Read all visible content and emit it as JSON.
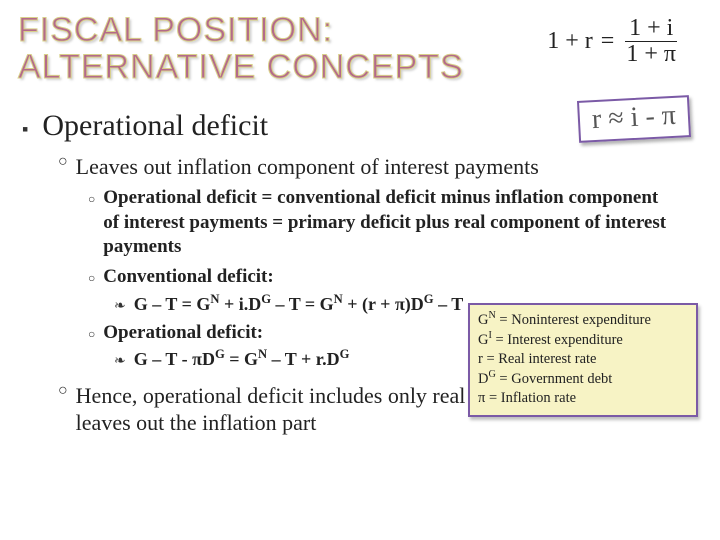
{
  "title": {
    "line1": "FISCAL POSITION:",
    "line2": "ALTERNATIVE CONCEPTS",
    "color_outline": "#d8d08a",
    "color_fill": "#b46a8a"
  },
  "formula": {
    "left": "1 + r",
    "eq": "=",
    "num": "1 + i",
    "den": "1 + π"
  },
  "approx": "r ≈ i - π",
  "l1": "Operational deficit",
  "l2a": "Leaves out inflation component of interest payments",
  "l3a": "Operational deficit = conventional deficit minus inflation component of interest payments = primary deficit plus real component of interest payments",
  "l3b": "Conventional deficit:",
  "l4b_html": "G – T = G<sup>N</sup> + i.D<sup>G</sup> – T = G<sup>N</sup> + (r + π)D<sup>G</sup> – T",
  "l3c": "Operational deficit:",
  "l4c_html": "G – T - πD<sup>G</sup> = G<sup>N</sup> – T + r.D<sup>G</sup>",
  "l2b": "Hence, operational deficit includes only real part of interest payments, leaves out the inflation part",
  "legend": {
    "bg": "#f7f3c5",
    "border": "#7b5aa6",
    "r1_html": "G<sup>N</sup> = Noninterest expenditure",
    "r2_html": "G<sup>I</sup> = Interest expenditure",
    "r3": "r = Real interest rate",
    "r4_html": "D<sup>G</sup> = Government debt",
    "r5": "π = Inflation rate"
  },
  "bullets": {
    "l1": "▪",
    "l2": "○",
    "l3": "○",
    "l4": "❧"
  }
}
